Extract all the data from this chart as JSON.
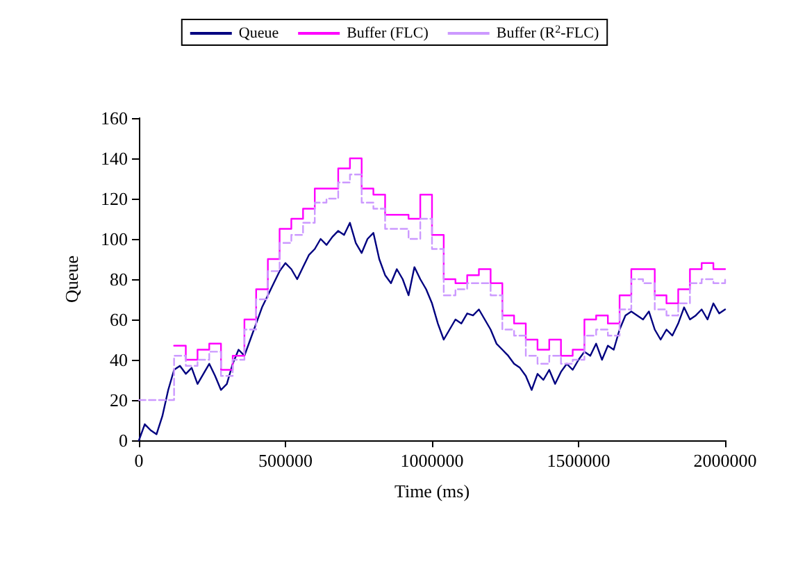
{
  "chart_data": {
    "type": "line",
    "xlabel": "Time (ms)",
    "ylabel": "Queue",
    "xlim": [
      0,
      2000000
    ],
    "xticks": [
      0,
      500000,
      1000000,
      1500000,
      2000000
    ],
    "ylim": [
      0,
      160
    ],
    "yticks": [
      0,
      20,
      40,
      60,
      80,
      100,
      120,
      140,
      160
    ],
    "grid": false,
    "legend": "top",
    "marker": "none",
    "series": [
      {
        "name": "Queue",
        "color": "#000080",
        "line_style": "solid",
        "x": [
          0,
          20000,
          40000,
          60000,
          80000,
          100000,
          120000,
          140000,
          160000,
          180000,
          200000,
          220000,
          240000,
          260000,
          280000,
          300000,
          320000,
          340000,
          360000,
          380000,
          400000,
          420000,
          440000,
          460000,
          480000,
          500000,
          520000,
          540000,
          560000,
          580000,
          600000,
          620000,
          640000,
          660000,
          680000,
          700000,
          720000,
          740000,
          760000,
          780000,
          800000,
          820000,
          840000,
          860000,
          880000,
          900000,
          920000,
          940000,
          960000,
          980000,
          1000000,
          1020000,
          1040000,
          1060000,
          1080000,
          1100000,
          1120000,
          1140000,
          1160000,
          1180000,
          1200000,
          1220000,
          1240000,
          1260000,
          1280000,
          1300000,
          1320000,
          1340000,
          1360000,
          1380000,
          1400000,
          1420000,
          1440000,
          1460000,
          1480000,
          1500000,
          1520000,
          1540000,
          1560000,
          1580000,
          1600000,
          1620000,
          1640000,
          1660000,
          1680000,
          1700000,
          1720000,
          1740000,
          1760000,
          1780000,
          1800000,
          1820000,
          1840000,
          1860000,
          1880000,
          1900000,
          1920000,
          1940000,
          1960000,
          1980000,
          2000000
        ],
        "values": [
          0,
          8,
          5,
          3,
          12,
          25,
          35,
          37,
          33,
          36,
          28,
          33,
          38,
          32,
          25,
          28,
          38,
          45,
          42,
          50,
          58,
          66,
          72,
          78,
          84,
          88,
          85,
          80,
          86,
          92,
          95,
          100,
          97,
          101,
          104,
          102,
          108,
          98,
          93,
          100,
          103,
          90,
          82,
          78,
          85,
          80,
          72,
          86,
          80,
          75,
          68,
          58,
          50,
          55,
          60,
          58,
          63,
          62,
          65,
          60,
          55,
          48,
          45,
          42,
          38,
          36,
          32,
          25,
          33,
          30,
          35,
          28,
          34,
          38,
          35,
          40,
          44,
          42,
          48,
          40,
          47,
          45,
          55,
          62,
          64,
          62,
          60,
          64,
          55,
          50,
          55,
          52,
          58,
          66,
          60,
          62,
          65,
          60,
          68,
          63,
          65
        ]
      },
      {
        "name": "Buffer (FLC)",
        "type": "step",
        "color": "#ff00ff",
        "line_style": "solid",
        "x": [
          120000,
          160000,
          200000,
          240000,
          280000,
          320000,
          360000,
          400000,
          440000,
          480000,
          520000,
          560000,
          600000,
          640000,
          680000,
          720000,
          760000,
          800000,
          840000,
          880000,
          920000,
          960000,
          1000000,
          1040000,
          1080000,
          1120000,
          1160000,
          1200000,
          1240000,
          1280000,
          1320000,
          1360000,
          1400000,
          1440000,
          1480000,
          1520000,
          1560000,
          1600000,
          1640000,
          1680000,
          1720000,
          1760000,
          1800000,
          1840000,
          1880000,
          1920000,
          1960000,
          2000000
        ],
        "values": [
          47,
          40,
          45,
          48,
          35,
          42,
          60,
          75,
          90,
          105,
          110,
          115,
          125,
          125,
          135,
          140,
          125,
          122,
          112,
          112,
          110,
          122,
          102,
          80,
          78,
          82,
          85,
          78,
          62,
          58,
          50,
          45,
          50,
          42,
          45,
          60,
          62,
          58,
          72,
          85,
          85,
          72,
          68,
          75,
          85,
          88,
          85,
          85
        ]
      },
      {
        "name": "Buffer (R$^{2}$-FLC)",
        "type": "step",
        "color": "#cc99ff",
        "line_style": "dashed",
        "x": [
          0,
          40000,
          80000,
          120000,
          160000,
          200000,
          240000,
          280000,
          320000,
          360000,
          400000,
          440000,
          480000,
          520000,
          560000,
          600000,
          640000,
          680000,
          720000,
          760000,
          800000,
          840000,
          880000,
          920000,
          960000,
          1000000,
          1040000,
          1080000,
          1120000,
          1160000,
          1200000,
          1240000,
          1280000,
          1320000,
          1360000,
          1400000,
          1440000,
          1480000,
          1520000,
          1560000,
          1600000,
          1640000,
          1680000,
          1720000,
          1760000,
          1800000,
          1840000,
          1880000,
          1920000,
          1960000,
          2000000
        ],
        "values": [
          20,
          20,
          20,
          42,
          37,
          40,
          44,
          32,
          40,
          55,
          70,
          84,
          98,
          102,
          108,
          118,
          120,
          128,
          132,
          118,
          115,
          105,
          105,
          100,
          110,
          95,
          72,
          75,
          78,
          78,
          72,
          55,
          52,
          42,
          38,
          42,
          38,
          40,
          52,
          55,
          52,
          65,
          80,
          78,
          65,
          62,
          68,
          78,
          80,
          78,
          80
        ]
      }
    ]
  }
}
